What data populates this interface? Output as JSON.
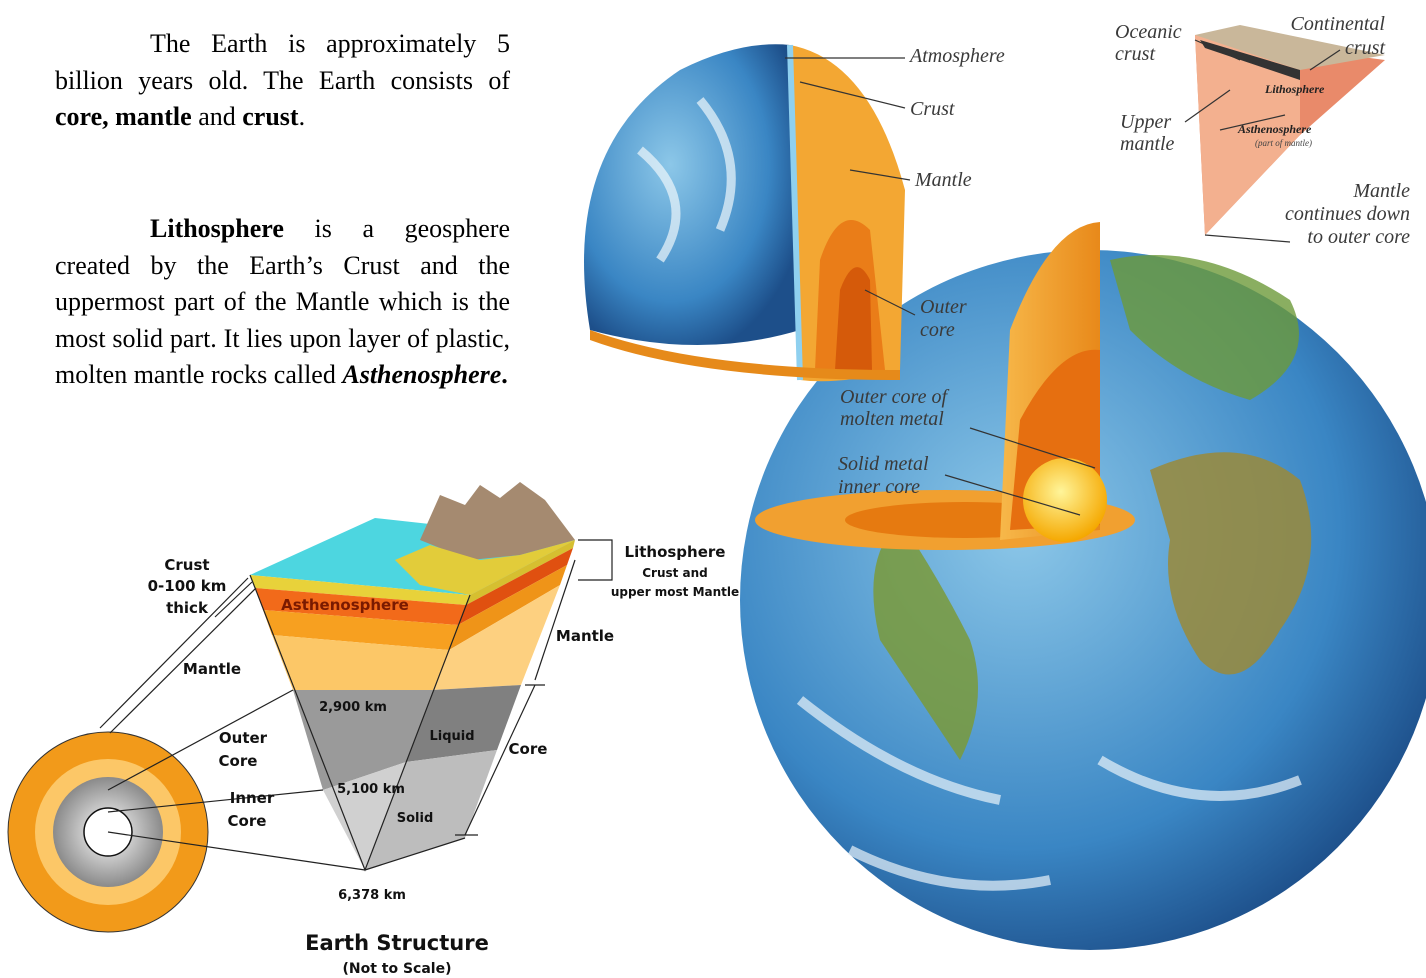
{
  "intro": {
    "p1": [
      "The Earth is approximately 5 billion years old. The Earth consists of ",
      "core, mantle",
      " and ",
      "crust",
      "."
    ],
    "p2": [
      "Lithosphere",
      " is a geosphere created by the Earth’s Crust and the uppermost part of the Mantle which is the most solid part. It lies upon layer of plastic, molten mantle rocks called ",
      "Asthenosphere",
      "."
    ]
  },
  "structure_diagram": {
    "title": "Earth Structure",
    "subtitle": "(Not to Scale)",
    "labels": [
      [
        "Crust",
        "0-100 km",
        "thick"
      ],
      [
        "Asthenosphere"
      ],
      [
        "Mantle"
      ],
      [
        "Outer",
        "Core"
      ],
      [
        "Inner",
        "Core"
      ],
      [
        "2,900 km"
      ],
      [
        "Liquid"
      ],
      [
        "5,100 km"
      ],
      [
        "Solid"
      ],
      [
        "6,378 km"
      ],
      [
        "Lithosphere",
        "Crust and",
        "upper most Mantle"
      ],
      [
        "Mantle"
      ],
      [
        "Core"
      ]
    ]
  },
  "illustration": {
    "labels": [
      [
        "Atmosphere"
      ],
      [
        "Crust"
      ],
      [
        "Mantle"
      ],
      [
        "Outer",
        "core"
      ],
      [
        "Oceanic",
        "crust"
      ],
      [
        "Continental",
        "crust"
      ],
      [
        "Lithosphere"
      ],
      [
        "Upper",
        "mantle"
      ],
      [
        "Asthenosphere",
        "(part of mantle)"
      ],
      [
        "Mantle",
        "continues down",
        "to outer core"
      ],
      [
        "Outer core of",
        "molten metal"
      ],
      [
        "Solid metal",
        "inner core"
      ]
    ]
  }
}
